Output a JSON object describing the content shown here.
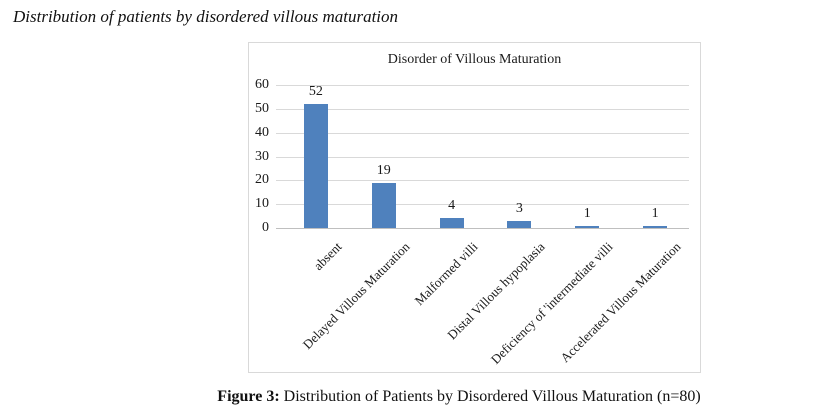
{
  "heading": "Distribution of patients by disordered villous maturation",
  "caption": {
    "label": "Figure 3:",
    "text": " Distribution of Patients by Disordered Villous Maturation (n=80)"
  },
  "chart_data": {
    "type": "bar",
    "title": "Disorder of Villous Maturation",
    "categories": [
      "absent",
      "Delayed Villous Maturation",
      "Malformed villi",
      "Distal Villous hypoplasia",
      "Deficiency of 'intermediate villi",
      "Accelerated Villous Maturation"
    ],
    "values": [
      52,
      19,
      4,
      3,
      1,
      1
    ],
    "data_labels": [
      52,
      19,
      4,
      3,
      1,
      1
    ],
    "xlabel": "",
    "ylabel": "",
    "ylim": [
      0,
      60
    ],
    "y_ticks": [
      0,
      10,
      20,
      30,
      40,
      50,
      60
    ],
    "grid": true,
    "legend": false,
    "x_label_rotation_deg": 45,
    "bar_color": "#4F81BD",
    "gridline_color": "#D9D9D9",
    "axis_line_color": "#BFBFBF",
    "chart_border_color": "#D9D9D9"
  }
}
